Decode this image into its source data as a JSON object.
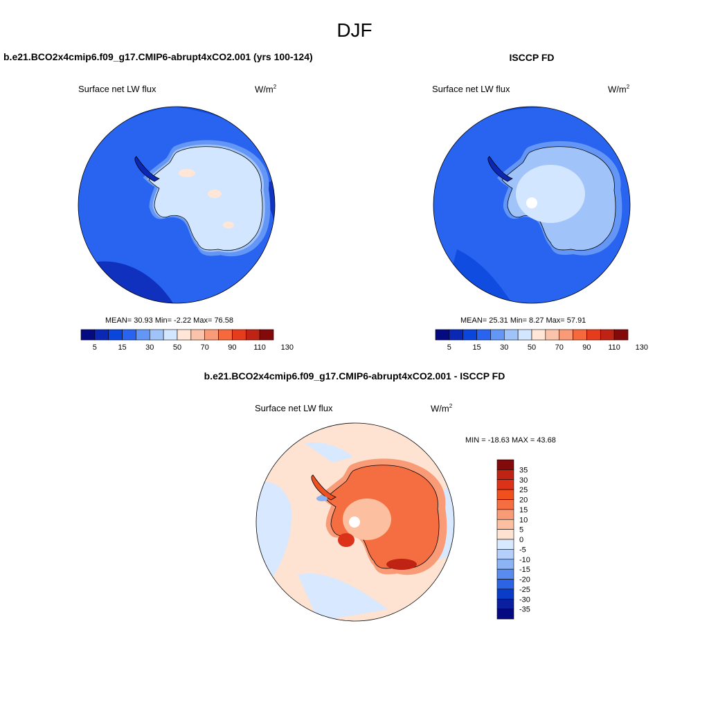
{
  "figure": {
    "title": "DJF",
    "panels": {
      "model": {
        "title": "b.e21.BCO2x4cmip6.f09_g17.CMIP6-abrupt4xCO2.001 (yrs 100-124)",
        "variable": "Surface net LW flux",
        "units_base": "W/m",
        "units_exp": "2",
        "stats": "MEAN=  30.93  Min=  -2.22  Max=  76.58"
      },
      "obs": {
        "title": "ISCCP FD",
        "variable": "Surface net LW flux",
        "units_base": "W/m",
        "units_exp": "2",
        "stats": "MEAN=  25.31  Min=    8.27  Max=  57.91"
      },
      "diff": {
        "title": "b.e21.BCO2x4cmip6.f09_g17.CMIP6-abrupt4xCO2.001 - ISCCP FD",
        "variable": "Surface net LW flux",
        "units_base": "W/m",
        "units_exp": "2",
        "stats": "MIN = -18.63 MAX =  43.68"
      }
    }
  },
  "chart_data": [
    {
      "type": "heatmap",
      "projection": "south-polar-stereographic",
      "field": "Surface net LW flux",
      "mean": 30.93,
      "min": -2.22,
      "max": 76.58,
      "colorbar": {
        "orientation": "horizontal",
        "tick_labels": [
          "5",
          "15",
          "30",
          "50",
          "70",
          "90",
          "110",
          "130"
        ],
        "colors": [
          "#050a80",
          "#0a28b4",
          "#0a46dc",
          "#2864f0",
          "#6496f5",
          "#a0c3fa",
          "#d2e6ff",
          "#ffe6d7",
          "#fac3aa",
          "#fa9b78",
          "#f5693c",
          "#e63c1e",
          "#be2314",
          "#820a0a"
        ]
      }
    },
    {
      "type": "heatmap",
      "projection": "south-polar-stereographic",
      "field": "Surface net LW flux",
      "mean": 25.31,
      "min": 8.27,
      "max": 57.91,
      "colorbar": {
        "orientation": "horizontal",
        "tick_labels": [
          "5",
          "15",
          "30",
          "50",
          "70",
          "90",
          "110",
          "130"
        ],
        "colors": [
          "#050a80",
          "#0a28b4",
          "#0a46dc",
          "#2864f0",
          "#6496f5",
          "#a0c3fa",
          "#d2e6ff",
          "#ffe6d7",
          "#fac3aa",
          "#fa9b78",
          "#f5693c",
          "#e63c1e",
          "#be2314",
          "#820a0a"
        ]
      }
    },
    {
      "type": "heatmap",
      "projection": "south-polar-stereographic",
      "field": "Surface net LW flux",
      "min": -18.63,
      "max": 43.68,
      "colorbar": {
        "orientation": "vertical",
        "tick_labels": [
          "35",
          "30",
          "25",
          "20",
          "15",
          "10",
          "5",
          "0",
          "-5",
          "-10",
          "-15",
          "-20",
          "-25",
          "-30",
          "-35"
        ],
        "colors": [
          "#820a0a",
          "#be2314",
          "#dc3219",
          "#f0501e",
          "#f56e41",
          "#fa9b78",
          "#fcc0a0",
          "#fee3d2",
          "#d7e8ff",
          "#b4d0fa",
          "#8cb4f5",
          "#5a8cf0",
          "#2d64e6",
          "#0a3cc8",
          "#0a1ea0",
          "#050a80"
        ]
      }
    }
  ]
}
